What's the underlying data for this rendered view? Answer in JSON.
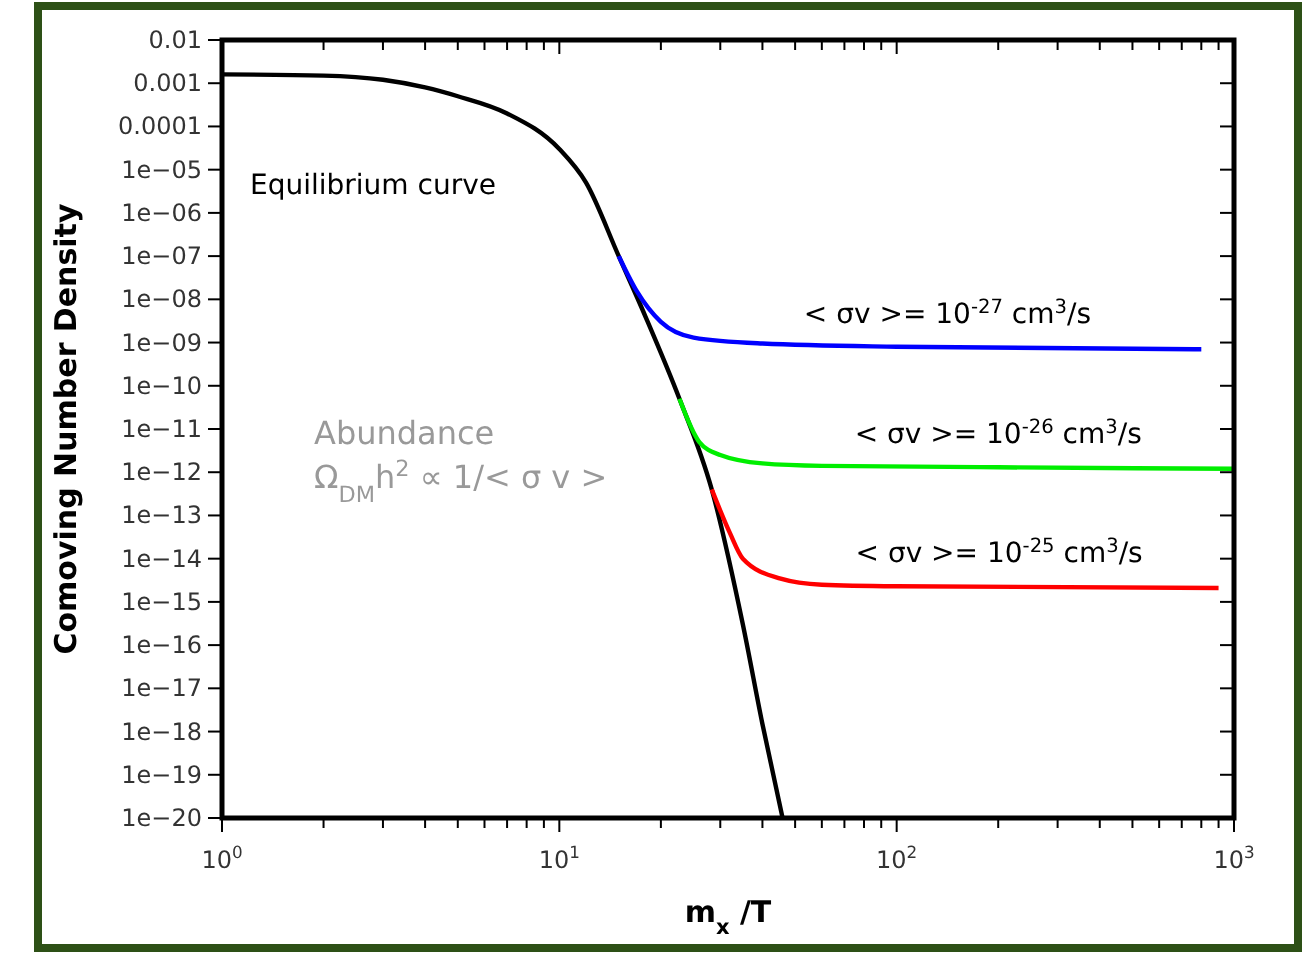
{
  "chart_data": {
    "type": "line",
    "xlabel": "m$_{x}$ /T",
    "ylabel": "Comoving Number Density",
    "log": "xy",
    "grid": false,
    "marker": "none",
    "line_style": "solid",
    "xlim": [
      1,
      1000
    ],
    "ylim": [
      1e-20,
      0.01
    ],
    "xticks": [
      {
        "value": 1,
        "label": "10$^{0}$"
      },
      {
        "value": 2,
        "label": null
      },
      {
        "value": 3,
        "label": null
      },
      {
        "value": 4,
        "label": null
      },
      {
        "value": 5,
        "label": null
      },
      {
        "value": 6,
        "label": null
      },
      {
        "value": 7,
        "label": null
      },
      {
        "value": 8,
        "label": null
      },
      {
        "value": 9,
        "label": null
      },
      {
        "value": 10,
        "label": "10$^{1}$"
      },
      {
        "value": 20,
        "label": null
      },
      {
        "value": 30,
        "label": null
      },
      {
        "value": 40,
        "label": null
      },
      {
        "value": 50,
        "label": null
      },
      {
        "value": 60,
        "label": null
      },
      {
        "value": 70,
        "label": null
      },
      {
        "value": 80,
        "label": null
      },
      {
        "value": 90,
        "label": null
      },
      {
        "value": 100,
        "label": "10$^{2}$"
      },
      {
        "value": 200,
        "label": null
      },
      {
        "value": 300,
        "label": null
      },
      {
        "value": 400,
        "label": null
      },
      {
        "value": 500,
        "label": null
      },
      {
        "value": 600,
        "label": null
      },
      {
        "value": 700,
        "label": null
      },
      {
        "value": 800,
        "label": null
      },
      {
        "value": 900,
        "label": null
      },
      {
        "value": 1000,
        "label": "10$^{3}$"
      }
    ],
    "yticks": [
      0.01,
      0.001,
      0.0001,
      {
        "value": 1e-05,
        "label": "1e−05"
      },
      {
        "value": 1e-06,
        "label": "1e−06"
      },
      {
        "value": 1e-07,
        "label": "1e−07"
      },
      {
        "value": 1e-08,
        "label": "1e−08"
      },
      {
        "value": 1e-09,
        "label": "1e−09"
      },
      {
        "value": 1e-10,
        "label": "1e−10"
      },
      {
        "value": 1e-11,
        "label": "1e−11"
      },
      {
        "value": 1e-12,
        "label": "1e−12"
      },
      {
        "value": 1e-13,
        "label": "1e−13"
      },
      {
        "value": 1e-14,
        "label": "1e−14"
      },
      {
        "value": 1e-15,
        "label": "1e−15"
      },
      {
        "value": 1e-16,
        "label": "1e−16"
      },
      {
        "value": 1e-17,
        "label": "1e−17"
      },
      {
        "value": 1e-18,
        "label": "1e−18"
      },
      {
        "value": 1e-19,
        "label": "1e−19"
      },
      {
        "value": 1e-20,
        "label": "1e−20"
      }
    ],
    "series": [
      {
        "name": "Equilibrium curve",
        "color": "#000000",
        "x": [
          1,
          2,
          3,
          4,
          5,
          7,
          10,
          12,
          15,
          18,
          22.7,
          28.3,
          35,
          40,
          45.9
        ],
        "values": [
          0.0016,
          0.0015,
          0.0012,
          0.0008,
          0.0005,
          0.0002,
          3e-05,
          5e-06,
          1e-07,
          4e-09,
          5e-11,
          4e-13,
          3e-16,
          1.5e-18,
          1e-20
        ]
      },
      {
        "name": "< σv >= 10$^{-27}$ cm$^{3}$/s",
        "color": "#0000ff",
        "x": [
          15,
          17,
          20,
          25,
          40,
          100,
          800
        ],
        "values": [
          1e-07,
          1.5e-08,
          3e-09,
          1.3e-09,
          9.5e-10,
          8e-10,
          7e-10
        ]
      },
      {
        "name": "< σv >= 10$^{-26}$ cm$^{3}$/s",
        "color": "#00ee00",
        "x": [
          22.7,
          26,
          30,
          40,
          60,
          200,
          1000
        ],
        "values": [
          5e-11,
          5e-12,
          2.5e-12,
          1.6e-12,
          1.4e-12,
          1.3e-12,
          1.2e-12
        ]
      },
      {
        "name": "< σv >= 10$^{-25}$ cm$^{3}$/s",
        "color": "#ff0000",
        "x": [
          28.3,
          32,
          35,
          45,
          60,
          100,
          900
        ],
        "values": [
          4e-13,
          4e-14,
          1e-14,
          3.5e-15,
          2.5e-15,
          2.3e-15,
          2.1e-15
        ]
      }
    ],
    "annotations": [
      "Abundance",
      "Ω$_{DM}$h$^{2}$ ∝ 1/< σ v >"
    ]
  }
}
